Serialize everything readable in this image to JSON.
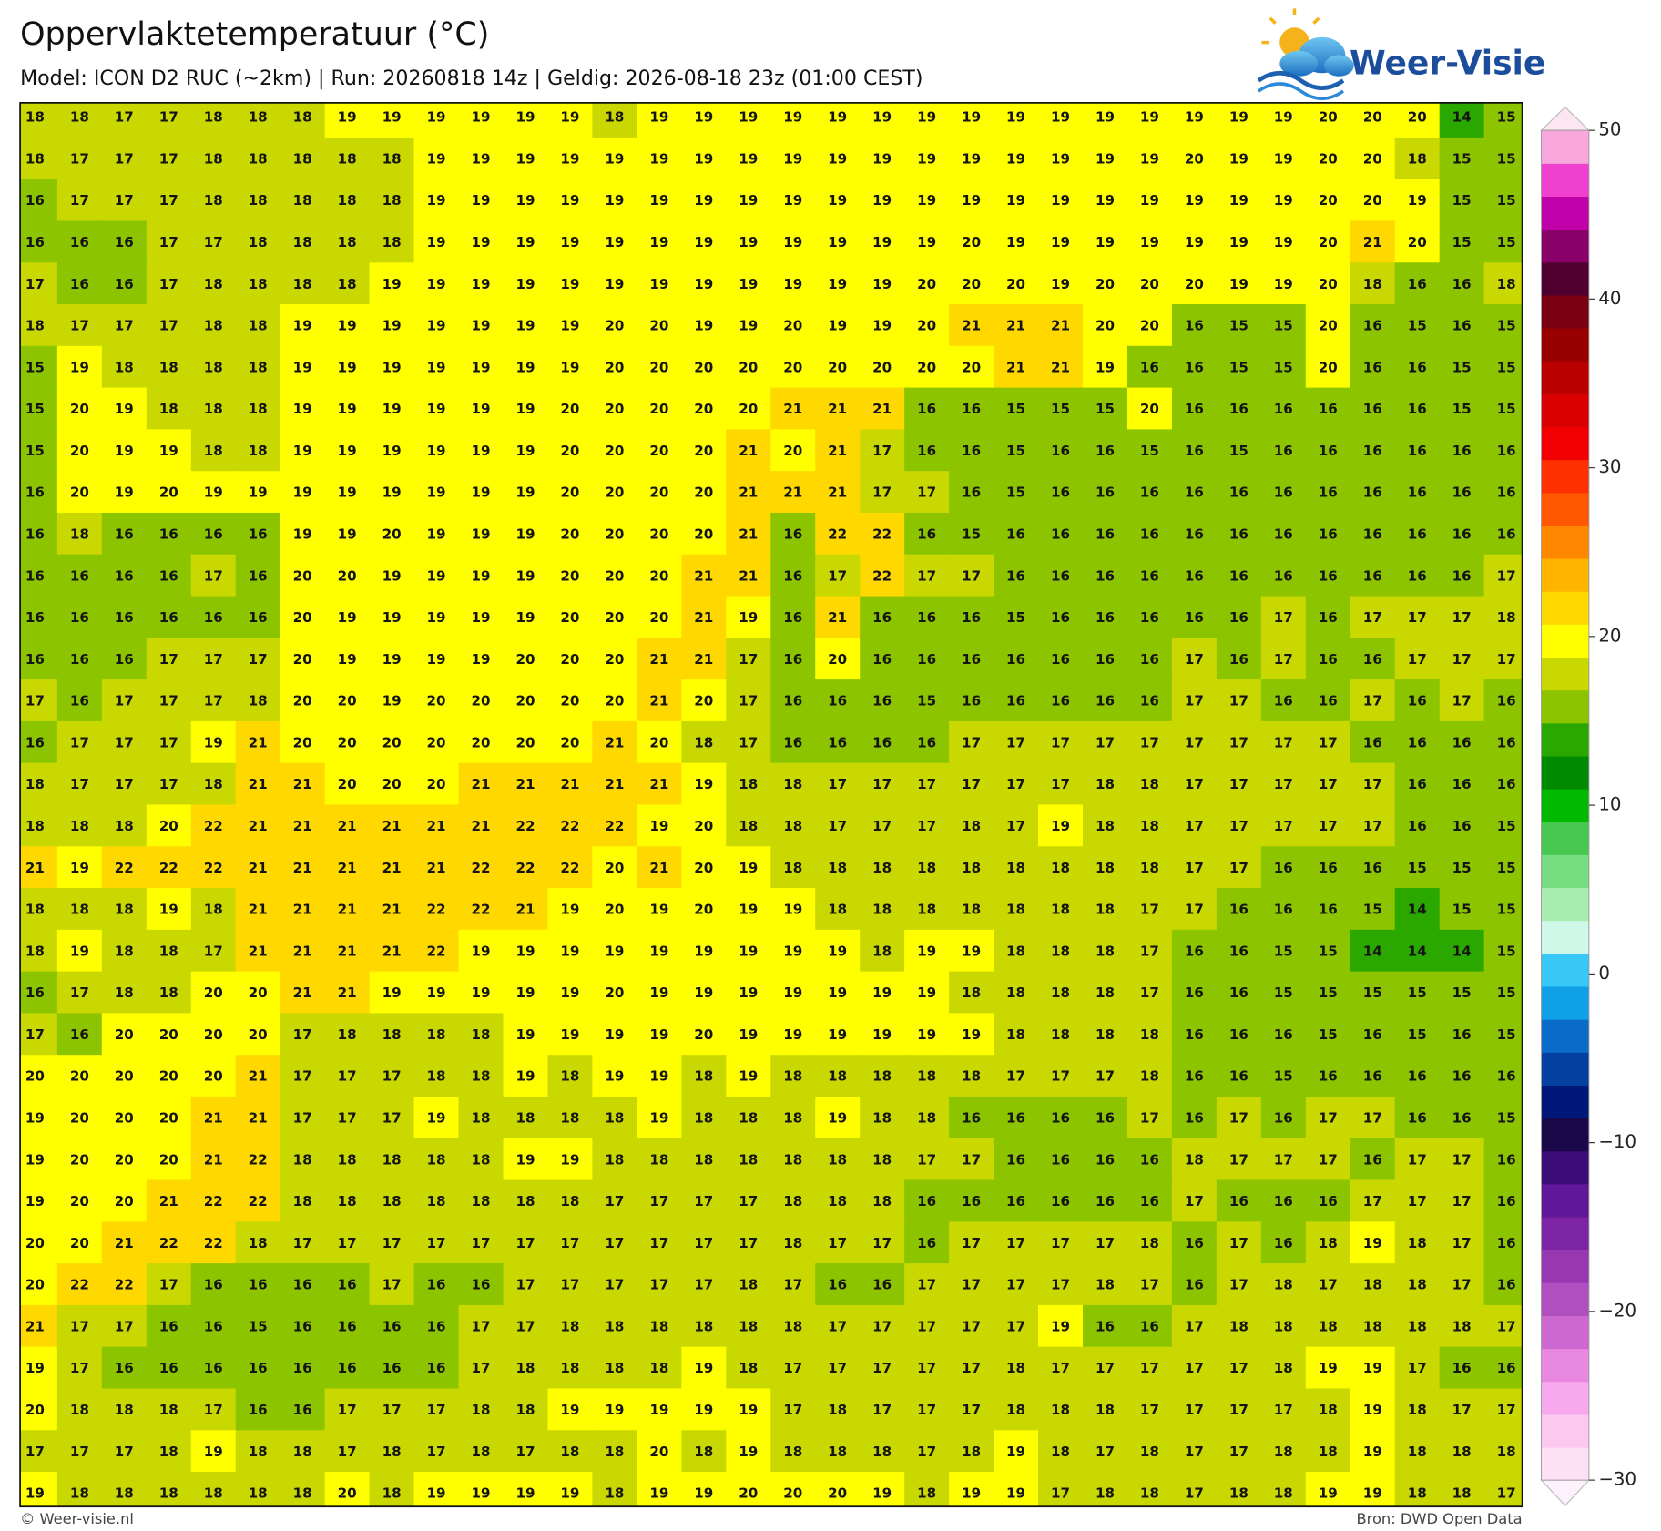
{
  "header": {
    "title": "Oppervlaktetemperatuur (°C)",
    "subtitle": "Model: ICON D2 RUC (~2km)  |  Run: 20260818 14z  |  Geldig: 2026-08-18 23z (01:00 CEST)"
  },
  "logo": {
    "text": "Weer-Visie"
  },
  "map": {
    "rows": [
      [
        18,
        18,
        17,
        17,
        18,
        18,
        18,
        19,
        19,
        19,
        19,
        19,
        19,
        18,
        19,
        19,
        19,
        19,
        19,
        19,
        19,
        19,
        19,
        19,
        19,
        19,
        19,
        19,
        19,
        20,
        20,
        20,
        14,
        15
      ],
      [
        18,
        17,
        17,
        17,
        18,
        18,
        18,
        18,
        18,
        19,
        19,
        19,
        19,
        19,
        19,
        19,
        19,
        19,
        19,
        19,
        19,
        19,
        19,
        19,
        19,
        19,
        20,
        19,
        19,
        20,
        20,
        18,
        15,
        15
      ],
      [
        16,
        17,
        17,
        17,
        18,
        18,
        18,
        18,
        18,
        19,
        19,
        19,
        19,
        19,
        19,
        19,
        19,
        19,
        19,
        19,
        19,
        19,
        19,
        19,
        19,
        19,
        19,
        19,
        19,
        20,
        20,
        19,
        15,
        15
      ],
      [
        16,
        16,
        16,
        17,
        17,
        18,
        18,
        18,
        18,
        19,
        19,
        19,
        19,
        19,
        19,
        19,
        19,
        19,
        19,
        19,
        19,
        20,
        19,
        19,
        19,
        19,
        19,
        19,
        19,
        20,
        21,
        20,
        15,
        15
      ],
      [
        17,
        16,
        16,
        17,
        18,
        18,
        18,
        18,
        19,
        19,
        19,
        19,
        19,
        19,
        19,
        19,
        19,
        19,
        19,
        19,
        20,
        20,
        20,
        19,
        20,
        20,
        20,
        19,
        19,
        20,
        18,
        16,
        16,
        18
      ],
      [
        18,
        17,
        17,
        17,
        18,
        18,
        19,
        19,
        19,
        19,
        19,
        19,
        19,
        20,
        20,
        19,
        19,
        20,
        19,
        19,
        20,
        21,
        21,
        21,
        20,
        20,
        16,
        15,
        15,
        20,
        16,
        15,
        16,
        15
      ],
      [
        15,
        19,
        18,
        18,
        18,
        18,
        19,
        19,
        19,
        19,
        19,
        19,
        19,
        20,
        20,
        20,
        20,
        20,
        20,
        20,
        20,
        20,
        21,
        21,
        19,
        16,
        16,
        15,
        15,
        20,
        16,
        16,
        15,
        15
      ],
      [
        15,
        20,
        19,
        18,
        18,
        18,
        19,
        19,
        19,
        19,
        19,
        19,
        20,
        20,
        20,
        20,
        20,
        21,
        21,
        21,
        16,
        16,
        15,
        15,
        15,
        20,
        16,
        16,
        16,
        16,
        16,
        16,
        15,
        15
      ],
      [
        15,
        20,
        19,
        19,
        18,
        18,
        19,
        19,
        19,
        19,
        19,
        19,
        20,
        20,
        20,
        20,
        21,
        20,
        21,
        17,
        16,
        16,
        15,
        16,
        16,
        15,
        16,
        15,
        16,
        16,
        16,
        16,
        16,
        16
      ],
      [
        16,
        20,
        19,
        20,
        19,
        19,
        19,
        19,
        19,
        19,
        19,
        19,
        20,
        20,
        20,
        20,
        21,
        21,
        21,
        17,
        17,
        16,
        15,
        16,
        16,
        16,
        16,
        16,
        16,
        16,
        16,
        16,
        16,
        16
      ],
      [
        16,
        18,
        16,
        16,
        16,
        16,
        19,
        19,
        20,
        19,
        19,
        19,
        20,
        20,
        20,
        20,
        21,
        16,
        22,
        22,
        16,
        15,
        16,
        16,
        16,
        16,
        16,
        16,
        16,
        16,
        16,
        16,
        16,
        16
      ],
      [
        16,
        16,
        16,
        16,
        17,
        16,
        20,
        20,
        19,
        19,
        19,
        19,
        20,
        20,
        20,
        21,
        21,
        16,
        17,
        22,
        17,
        17,
        16,
        16,
        16,
        16,
        16,
        16,
        16,
        16,
        16,
        16,
        16,
        17
      ],
      [
        16,
        16,
        16,
        16,
        16,
        16,
        20,
        19,
        19,
        19,
        19,
        19,
        20,
        20,
        20,
        21,
        19,
        16,
        21,
        16,
        16,
        16,
        15,
        16,
        16,
        16,
        16,
        16,
        17,
        16,
        17,
        17,
        17,
        18
      ],
      [
        16,
        16,
        16,
        17,
        17,
        17,
        20,
        19,
        19,
        19,
        19,
        20,
        20,
        20,
        21,
        21,
        17,
        16,
        20,
        16,
        16,
        16,
        16,
        16,
        16,
        16,
        17,
        16,
        17,
        16,
        16,
        17,
        17,
        17
      ],
      [
        17,
        16,
        17,
        17,
        17,
        18,
        20,
        20,
        19,
        20,
        20,
        20,
        20,
        20,
        21,
        20,
        17,
        16,
        16,
        16,
        15,
        16,
        16,
        16,
        16,
        16,
        17,
        17,
        16,
        16,
        17,
        16,
        17,
        16
      ],
      [
        16,
        17,
        17,
        17,
        19,
        21,
        20,
        20,
        20,
        20,
        20,
        20,
        20,
        21,
        20,
        18,
        17,
        16,
        16,
        16,
        16,
        17,
        17,
        17,
        17,
        17,
        17,
        17,
        17,
        17,
        16,
        16,
        16,
        16
      ],
      [
        18,
        17,
        17,
        17,
        18,
        21,
        21,
        20,
        20,
        20,
        21,
        21,
        21,
        21,
        21,
        19,
        18,
        18,
        17,
        17,
        17,
        17,
        17,
        17,
        18,
        18,
        17,
        17,
        17,
        17,
        17,
        16,
        16,
        16
      ],
      [
        18,
        18,
        18,
        20,
        22,
        21,
        21,
        21,
        21,
        21,
        21,
        22,
        22,
        22,
        19,
        20,
        18,
        18,
        17,
        17,
        17,
        18,
        17,
        19,
        18,
        18,
        17,
        17,
        17,
        17,
        17,
        16,
        16,
        15
      ],
      [
        21,
        19,
        22,
        22,
        22,
        21,
        21,
        21,
        21,
        21,
        22,
        22,
        22,
        20,
        21,
        20,
        19,
        18,
        18,
        18,
        18,
        18,
        18,
        18,
        18,
        18,
        17,
        17,
        16,
        16,
        16,
        15,
        15,
        15
      ],
      [
        18,
        18,
        18,
        19,
        18,
        21,
        21,
        21,
        21,
        22,
        22,
        21,
        19,
        20,
        19,
        20,
        19,
        19,
        18,
        18,
        18,
        18,
        18,
        18,
        18,
        17,
        17,
        16,
        16,
        16,
        15,
        14,
        15,
        15
      ],
      [
        18,
        19,
        18,
        18,
        17,
        21,
        21,
        21,
        21,
        22,
        19,
        19,
        19,
        19,
        19,
        19,
        19,
        19,
        19,
        18,
        19,
        19,
        18,
        18,
        18,
        17,
        16,
        16,
        15,
        15,
        14,
        14,
        14,
        15
      ],
      [
        16,
        17,
        18,
        18,
        20,
        20,
        21,
        21,
        19,
        19,
        19,
        19,
        19,
        20,
        19,
        19,
        19,
        19,
        19,
        19,
        19,
        18,
        18,
        18,
        18,
        17,
        16,
        16,
        15,
        15,
        15,
        15,
        15,
        15
      ],
      [
        17,
        16,
        20,
        20,
        20,
        20,
        17,
        18,
        18,
        18,
        18,
        19,
        19,
        19,
        19,
        20,
        19,
        19,
        19,
        19,
        19,
        19,
        18,
        18,
        18,
        18,
        16,
        16,
        16,
        15,
        16,
        15,
        16,
        15
      ],
      [
        20,
        20,
        20,
        20,
        20,
        21,
        17,
        17,
        17,
        18,
        18,
        19,
        18,
        19,
        19,
        18,
        19,
        18,
        18,
        18,
        18,
        18,
        17,
        17,
        17,
        18,
        16,
        16,
        15,
        16,
        16,
        16,
        16,
        16
      ],
      [
        19,
        20,
        20,
        20,
        21,
        21,
        17,
        17,
        17,
        19,
        18,
        18,
        18,
        18,
        19,
        18,
        18,
        18,
        19,
        18,
        18,
        16,
        16,
        16,
        16,
        17,
        16,
        17,
        16,
        17,
        17,
        16,
        16,
        15
      ],
      [
        19,
        20,
        20,
        20,
        21,
        22,
        18,
        18,
        18,
        18,
        18,
        19,
        19,
        18,
        18,
        18,
        18,
        18,
        18,
        18,
        17,
        17,
        16,
        16,
        16,
        16,
        18,
        17,
        17,
        17,
        16,
        17,
        17,
        16
      ],
      [
        19,
        20,
        20,
        21,
        22,
        22,
        18,
        18,
        18,
        18,
        18,
        18,
        18,
        17,
        17,
        17,
        17,
        18,
        18,
        18,
        16,
        16,
        16,
        16,
        16,
        16,
        17,
        16,
        16,
        16,
        17,
        17,
        17,
        16
      ],
      [
        20,
        20,
        21,
        22,
        22,
        18,
        17,
        17,
        17,
        17,
        17,
        17,
        17,
        17,
        17,
        17,
        17,
        18,
        17,
        17,
        16,
        17,
        17,
        17,
        17,
        18,
        16,
        17,
        16,
        18,
        19,
        18,
        17,
        16
      ],
      [
        20,
        22,
        22,
        17,
        16,
        16,
        16,
        16,
        17,
        16,
        16,
        17,
        17,
        17,
        17,
        17,
        18,
        17,
        16,
        16,
        17,
        17,
        17,
        17,
        18,
        17,
        16,
        17,
        18,
        17,
        18,
        18,
        17,
        16
      ],
      [
        21,
        17,
        17,
        16,
        16,
        15,
        16,
        16,
        16,
        16,
        17,
        17,
        18,
        18,
        18,
        18,
        18,
        18,
        17,
        17,
        17,
        17,
        17,
        19,
        16,
        16,
        17,
        18,
        18,
        18,
        18,
        18,
        18,
        17
      ],
      [
        19,
        17,
        16,
        16,
        16,
        16,
        16,
        16,
        16,
        16,
        17,
        18,
        18,
        18,
        18,
        19,
        18,
        17,
        17,
        17,
        17,
        17,
        18,
        17,
        17,
        17,
        17,
        17,
        18,
        19,
        19,
        17,
        16,
        16
      ],
      [
        20,
        18,
        18,
        18,
        17,
        16,
        16,
        17,
        17,
        17,
        18,
        18,
        19,
        19,
        19,
        19,
        19,
        17,
        18,
        17,
        17,
        17,
        18,
        18,
        18,
        17,
        17,
        17,
        17,
        18,
        19,
        18,
        17,
        17
      ],
      [
        17,
        17,
        17,
        18,
        19,
        18,
        18,
        17,
        18,
        17,
        18,
        17,
        18,
        18,
        20,
        18,
        19,
        18,
        18,
        18,
        17,
        18,
        19,
        18,
        17,
        18,
        17,
        17,
        18,
        18,
        19,
        18,
        18,
        18
      ],
      [
        19,
        18,
        18,
        18,
        18,
        18,
        18,
        20,
        18,
        19,
        19,
        19,
        19,
        18,
        19,
        19,
        20,
        20,
        20,
        19,
        18,
        19,
        19,
        17,
        18,
        18,
        17,
        18,
        18,
        19,
        19,
        18,
        18,
        17
      ]
    ]
  },
  "colorbar": {
    "lim": [
      -30,
      50
    ],
    "ticks": [
      50,
      40,
      30,
      20,
      10,
      0,
      {
        "value": -10,
        "label": "−10"
      },
      {
        "value": -20,
        "label": "−20"
      },
      {
        "value": -30,
        "label": "−30"
      }
    ],
    "colors": [
      "#fde0f6",
      "#fcc8f0",
      "#f8a8ec",
      "#e888e0",
      "#cc68d0",
      "#b050c0",
      "#9838b0",
      "#7c24a4",
      "#601898",
      "#3c0c78",
      "#1a0848",
      "#001878",
      "#0440a0",
      "#0a6cc8",
      "#10a0e8",
      "#38c8f8",
      "#d0f8e8",
      "#a8ecb0",
      "#78dc80",
      "#48c850",
      "#00b800",
      "#008a00",
      "#2aa800",
      "#8cc400",
      "#c8d800",
      "#ffff00",
      "#ffd800",
      "#ffb400",
      "#ff8800",
      "#ff5800",
      "#ff3000",
      "#f00000",
      "#d80000",
      "#b80000",
      "#980000",
      "#780010",
      "#500030",
      "#880068",
      "#c000a8",
      "#f040d0",
      "#f8a8dc"
    ]
  },
  "footer": {
    "left": "© Weer-visie.nl",
    "right": "Bron: DWD Open Data"
  }
}
